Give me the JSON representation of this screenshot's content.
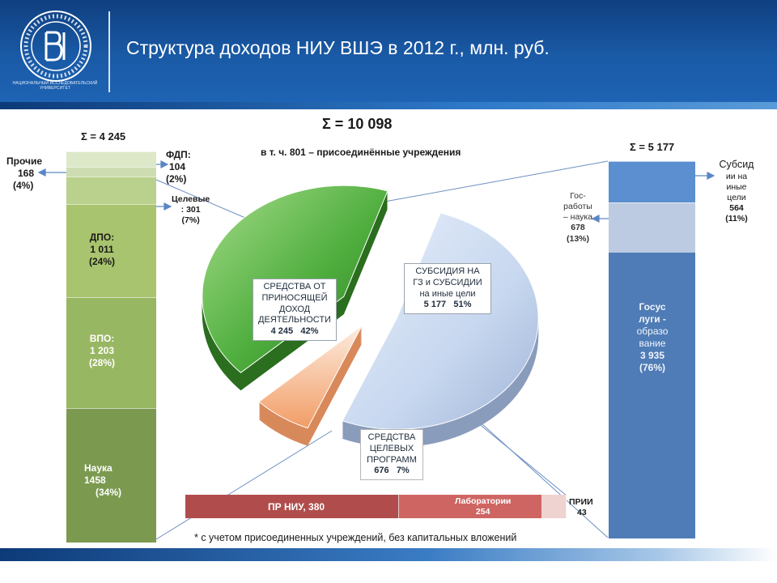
{
  "header": {
    "title": "Структура доходов НИУ ВШЭ в 2012 г., млн. руб.",
    "logo_caption": "Национальный исследовательский университет",
    "colors": {
      "primary": "#1a5aa6",
      "dark": "#0f3f80"
    }
  },
  "chart_data": [
    {
      "type": "pie",
      "title": "Σ = 10 098",
      "subtitle": "в т. ч. 801 – присоединённые учреждения",
      "slices": [
        {
          "lines": [
            "СУБСИДИЯ НА",
            "ГЗ и СУБСИДИИ",
            "на иные цели"
          ],
          "value": 5177,
          "value_text": "5 177",
          "percent_text": "51%",
          "color": "#c7d7ef"
        },
        {
          "lines": [
            "СРЕДСТВА",
            "ЦЕЛЕВЫХ",
            "ПРОГРАММ"
          ],
          "value": 676,
          "value_text": "676",
          "percent_text": "7%",
          "color": "#f6b48a"
        },
        {
          "lines": [
            "СРЕДСТВА ОТ",
            "ПРИНОСЯЩЕЙ",
            "ДОХОД",
            "ДЕЯТЕЛЬНОСТИ"
          ],
          "value": 4245,
          "value_text": "4 245",
          "percent_text": "42%",
          "color": "#4fae3e"
        }
      ]
    },
    {
      "type": "bar",
      "title": "Σ = 4 245",
      "segments": [
        {
          "label": "Наука",
          "value": 1458,
          "value_text": "1458",
          "percent": "(34%)",
          "color": "#7b9a4f"
        },
        {
          "label": "ВПО:",
          "value": 1203,
          "value_text": "1 203",
          "percent": "(28%)",
          "color": "#98b762"
        },
        {
          "label": "ДПО:",
          "value": 1011,
          "value_text": "1 011",
          "percent": "(24%)",
          "color": "#a9c46e"
        },
        {
          "label": "Целевые",
          "value": 301,
          "value_text": ": 301",
          "percent": "(7%)",
          "color": "#bad18d"
        },
        {
          "label": "ФДП:",
          "value": 104,
          "value_text": "104",
          "percent": "(2%)",
          "color": "#cdddb1"
        },
        {
          "label": "Прочие",
          "value": 168,
          "value_text": "168",
          "percent": "(4%)",
          "color": "#dde8c9"
        }
      ]
    },
    {
      "type": "bar",
      "title": "Σ = 5 177",
      "segments": [
        {
          "lines": [
            "Госус",
            "луги -",
            "образо",
            "вание"
          ],
          "value": 3935,
          "value_text": "3 935",
          "percent": "(76%)",
          "color": "#4f7cb6"
        },
        {
          "lines": [
            "Гос-",
            "работы",
            "– наука"
          ],
          "value": 678,
          "value_text": "678",
          "percent": "(13%)",
          "color": "#bccbe2"
        },
        {
          "lines": [
            "Субсид",
            "ии на",
            "иные",
            "цели"
          ],
          "value": 564,
          "value_text": "564",
          "percent": "(11%)",
          "color": "#5b8fcf"
        }
      ]
    },
    {
      "type": "bar",
      "segments": [
        {
          "label": "ПР НИУ, 380",
          "value": 380,
          "color": "#b04d4c"
        },
        {
          "label": "Лаборатории",
          "value": 254,
          "value_text": "254",
          "color": "#cf6562"
        },
        {
          "label": "ПРИИ",
          "value": 43,
          "value_text": "43",
          "color": "#efd3d1"
        }
      ]
    }
  ],
  "footnote": "* с учетом присоединенных учреждений, без капитальных вложений"
}
